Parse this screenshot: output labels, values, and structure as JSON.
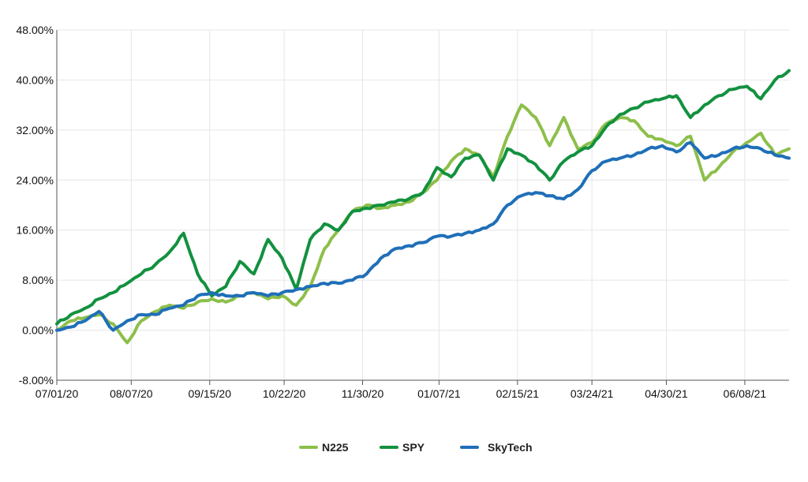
{
  "chart_data": {
    "type": "line",
    "title": "",
    "xlabel": "",
    "ylabel": "",
    "x": [
      "07/01/20",
      "07/08/20",
      "07/15/20",
      "07/22/20",
      "07/29/20",
      "08/05/20",
      "08/12/20",
      "08/19/20",
      "08/26/20",
      "09/02/20",
      "09/09/20",
      "09/16/20",
      "09/23/20",
      "09/30/20",
      "10/07/20",
      "10/14/20",
      "10/21/20",
      "10/28/20",
      "11/04/20",
      "11/11/20",
      "11/18/20",
      "11/25/20",
      "12/02/20",
      "12/09/20",
      "12/16/20",
      "12/23/20",
      "12/30/20",
      "01/06/21",
      "01/13/21",
      "01/20/21",
      "01/27/21",
      "02/03/21",
      "02/10/21",
      "02/17/21",
      "02/24/21",
      "03/03/21",
      "03/10/21",
      "03/17/21",
      "03/24/21",
      "03/31/21",
      "04/07/21",
      "04/14/21",
      "04/21/21",
      "04/28/21",
      "05/05/21",
      "05/12/21",
      "05/19/21",
      "05/26/21",
      "06/02/21",
      "06/09/21",
      "06/16/21",
      "06/23/21",
      "06/30/21"
    ],
    "x_ticks": [
      "07/01/20",
      "08/07/20",
      "09/15/20",
      "10/22/20",
      "11/30/20",
      "01/07/21",
      "02/15/21",
      "03/24/21",
      "04/30/21",
      "06/08/21"
    ],
    "y_ticks": [
      "48.00%",
      "40.00%",
      "32.00%",
      "24.00%",
      "16.00%",
      "8.00%",
      "0.00%",
      "-8.00%"
    ],
    "ylim": [
      -8,
      48
    ],
    "y_unit": "%",
    "grid": true,
    "legend_position": "bottom",
    "series": [
      {
        "name": "N225",
        "color": "#8dbf4a",
        "values": [
          0.0,
          1.5,
          2.0,
          2.5,
          1.0,
          -2.0,
          1.5,
          3.0,
          4.0,
          3.5,
          4.5,
          5.0,
          4.5,
          5.5,
          6.0,
          5.0,
          5.5,
          4.0,
          7.0,
          13.0,
          16.0,
          19.0,
          20.0,
          19.5,
          20.0,
          20.5,
          22.0,
          24.0,
          27.0,
          29.0,
          28.0,
          24.5,
          31.0,
          36.0,
          34.0,
          29.5,
          34.0,
          29.0,
          30.0,
          33.0,
          34.0,
          33.5,
          31.0,
          30.5,
          29.5,
          31.0,
          24.0,
          26.0,
          28.5,
          30.0,
          31.5,
          28.0,
          29.0
        ]
      },
      {
        "name": "SPY",
        "color": "#12913f",
        "values": [
          1.0,
          2.5,
          3.5,
          5.0,
          6.0,
          7.5,
          9.0,
          10.5,
          12.5,
          15.5,
          9.0,
          5.5,
          7.0,
          11.0,
          9.0,
          14.5,
          11.5,
          6.5,
          14.5,
          17.0,
          16.0,
          19.0,
          19.5,
          20.0,
          20.5,
          21.0,
          22.0,
          26.0,
          24.5,
          27.5,
          28.0,
          24.0,
          29.0,
          28.0,
          26.5,
          24.0,
          27.0,
          28.5,
          29.5,
          32.5,
          34.5,
          35.5,
          36.5,
          37.0,
          37.5,
          34.0,
          36.0,
          37.5,
          38.5,
          39.0,
          37.0,
          40.0,
          41.5
        ]
      },
      {
        "name": "SkyTech",
        "color": "#1f6fb8",
        "values": [
          0.0,
          0.5,
          1.5,
          3.0,
          0.0,
          1.5,
          2.5,
          2.5,
          3.5,
          4.0,
          5.5,
          6.0,
          5.5,
          5.5,
          6.0,
          5.5,
          6.0,
          6.5,
          7.0,
          7.5,
          7.5,
          8.0,
          9.0,
          11.5,
          13.0,
          13.5,
          14.0,
          15.0,
          15.0,
          15.5,
          16.0,
          17.0,
          20.0,
          21.5,
          22.0,
          21.5,
          21.0,
          22.5,
          25.5,
          27.0,
          27.5,
          28.0,
          29.0,
          29.5,
          28.5,
          30.0,
          27.5,
          28.0,
          29.0,
          29.5,
          29.0,
          28.0,
          27.5
        ]
      }
    ]
  }
}
